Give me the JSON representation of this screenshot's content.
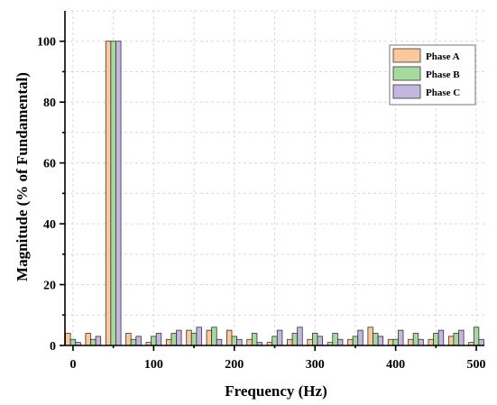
{
  "chart_data": {
    "type": "bar",
    "x": [
      0,
      25,
      50,
      75,
      100,
      125,
      150,
      175,
      200,
      225,
      250,
      275,
      300,
      325,
      350,
      375,
      400,
      425,
      450,
      475,
      500
    ],
    "series": [
      {
        "name": "Phase A",
        "color": "#fbc89c",
        "values": [
          4,
          4,
          100,
          4,
          1,
          2,
          5,
          5,
          5,
          2,
          1,
          2,
          2,
          1,
          2,
          6,
          2,
          2,
          2,
          3,
          1
        ]
      },
      {
        "name": "Phase B",
        "color": "#a5d9a0",
        "values": [
          2,
          2,
          100,
          2,
          3,
          4,
          4,
          6,
          3,
          4,
          3,
          4,
          4,
          4,
          3,
          4,
          2,
          4,
          4,
          4,
          6
        ]
      },
      {
        "name": "Phase C",
        "color": "#c5b6e0",
        "values": [
          1,
          3,
          100,
          3,
          4,
          5,
          6,
          2,
          2,
          1,
          5,
          6,
          3,
          2,
          5,
          3,
          5,
          2,
          5,
          5,
          2
        ]
      }
    ],
    "xlabel": "Frequency (Hz)",
    "ylabel": "Magnitude (% of Fundamental)",
    "xlim": [
      -10,
      510
    ],
    "ylim": [
      0,
      110
    ],
    "xticks": [
      0,
      100,
      200,
      300,
      400,
      500
    ],
    "yticks": [
      0,
      20,
      40,
      60,
      80,
      100
    ],
    "grid": true,
    "legend_position": "top-right"
  }
}
